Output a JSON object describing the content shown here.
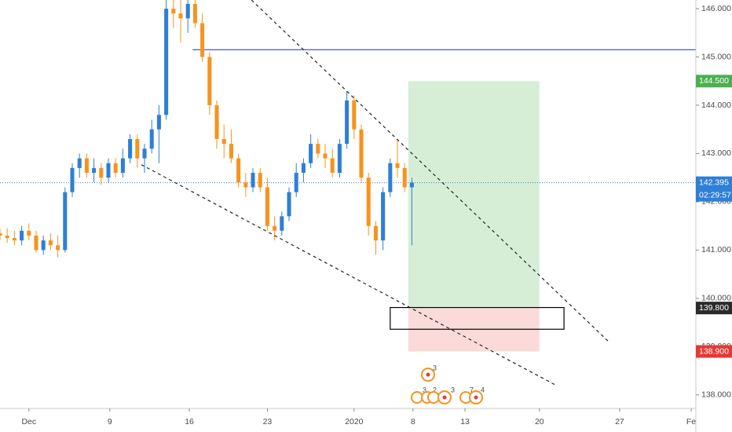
{
  "chart_data": {
    "type": "candlestick",
    "x": [
      0,
      2,
      4,
      6,
      8,
      10,
      12,
      14,
      16,
      18,
      20,
      22,
      24,
      26,
      28,
      30,
      32,
      34,
      36,
      38,
      40,
      42,
      44,
      46,
      48,
      50,
      52,
      54,
      56,
      58,
      60,
      62,
      64,
      66,
      68,
      70,
      72,
      74,
      76,
      78,
      80,
      82,
      84,
      86,
      88,
      90,
      92,
      94,
      96,
      98,
      100,
      102,
      104,
      106,
      108,
      110,
      112,
      114
    ],
    "open": [
      141.35,
      141.3,
      141.25,
      141.2,
      141.4,
      141.3,
      141.0,
      141.2,
      141.1,
      141.0,
      142.2,
      142.7,
      142.9,
      142.6,
      142.7,
      142.5,
      142.8,
      142.6,
      142.9,
      143.3,
      142.9,
      143.1,
      143.5,
      143.8,
      146.0,
      145.9,
      145.8,
      146.1,
      145.7,
      145.0,
      144.0,
      143.3,
      143.2,
      142.9,
      142.4,
      142.3,
      142.6,
      142.3,
      141.5,
      141.4,
      141.7,
      142.2,
      142.6,
      142.8,
      143.2,
      143.0,
      142.9,
      142.6,
      143.2,
      144.1,
      143.5,
      142.5,
      141.5,
      141.2,
      142.2,
      142.8,
      142.7,
      142.3
    ],
    "high": [
      141.45,
      141.45,
      141.4,
      141.5,
      141.55,
      141.4,
      141.3,
      141.35,
      141.3,
      142.3,
      142.8,
      143.0,
      143.0,
      142.9,
      142.8,
      142.9,
      142.9,
      143.1,
      143.4,
      143.4,
      143.2,
      143.7,
      144.0,
      146.2,
      146.3,
      146.2,
      146.3,
      146.2,
      145.9,
      145.1,
      144.1,
      143.6,
      143.5,
      143.0,
      142.6,
      142.7,
      142.7,
      142.5,
      141.7,
      141.8,
      142.3,
      142.8,
      142.9,
      143.4,
      143.3,
      143.2,
      143.1,
      143.3,
      144.3,
      144.2,
      143.6,
      142.6,
      141.6,
      142.3,
      142.9,
      143.3,
      142.8,
      142.5
    ],
    "low": [
      141.2,
      141.15,
      141.1,
      141.1,
      141.2,
      140.95,
      140.9,
      141.0,
      140.85,
      140.95,
      142.1,
      142.5,
      142.5,
      142.4,
      142.35,
      142.4,
      142.5,
      142.5,
      142.8,
      142.7,
      142.6,
      143.0,
      142.8,
      143.7,
      145.6,
      145.3,
      145.5,
      145.6,
      144.9,
      143.8,
      143.1,
      142.9,
      142.8,
      142.3,
      142.1,
      142.2,
      142.2,
      141.4,
      141.2,
      141.3,
      141.6,
      142.1,
      142.4,
      142.7,
      142.9,
      142.7,
      142.5,
      142.5,
      143.1,
      143.3,
      142.4,
      141.3,
      140.9,
      141.0,
      142.1,
      142.5,
      142.2,
      141.1
    ],
    "close": [
      141.3,
      141.25,
      141.2,
      141.4,
      141.3,
      141.0,
      141.2,
      141.1,
      141.0,
      142.2,
      142.7,
      142.9,
      142.6,
      142.7,
      142.5,
      142.8,
      142.6,
      142.9,
      143.3,
      142.9,
      143.1,
      143.5,
      143.8,
      146.0,
      145.9,
      145.8,
      146.1,
      145.7,
      145.0,
      144.0,
      143.3,
      143.2,
      142.9,
      142.4,
      142.3,
      142.6,
      142.3,
      141.5,
      141.4,
      141.7,
      142.2,
      142.6,
      142.8,
      143.2,
      143.0,
      142.9,
      142.6,
      143.2,
      144.1,
      143.5,
      142.5,
      141.5,
      141.2,
      142.2,
      142.8,
      142.7,
      142.3,
      142.395
    ],
    "up_color": "#2e7fd6",
    "down_color": "#f7931e",
    "xlim": [
      0,
      192.6
    ],
    "xticks": [
      {
        "value": 8,
        "label": "Dec"
      },
      {
        "value": 30.4,
        "label": "9"
      },
      {
        "value": 52.4,
        "label": "16"
      },
      {
        "value": 74,
        "label": "23"
      },
      {
        "value": 98,
        "label": "2020"
      },
      {
        "value": 114.3,
        "label": "8"
      },
      {
        "value": 128.7,
        "label": "13"
      },
      {
        "value": 149.3,
        "label": "20"
      },
      {
        "value": 171.5,
        "label": "27"
      },
      {
        "value": 191.3,
        "label": "Fe"
      }
    ],
    "ylim": [
      137.72,
      146.18
    ],
    "yticks": [
      {
        "value": 138,
        "label": "138.000"
      },
      {
        "value": 139,
        "label": "139.000"
      },
      {
        "value": 140,
        "label": "140.000"
      },
      {
        "value": 141,
        "label": "141.000"
      },
      {
        "value": 142,
        "label": "142.000"
      },
      {
        "value": 143,
        "label": "143.000"
      },
      {
        "value": 144,
        "label": "144.000"
      },
      {
        "value": 145,
        "label": "145.000"
      },
      {
        "value": 146,
        "label": "146.000"
      }
    ],
    "last_price": {
      "value": 142.395,
      "label": "142.395",
      "countdown": "02:29:57",
      "color": "#2e7fd6"
    },
    "horizontal_line": {
      "value": 145.15,
      "start": 53.3,
      "color": "#1a2fb5"
    },
    "trendlines": [
      {
        "x": [
          69.6,
          168.5
        ],
        "y": [
          146.18,
          139.1
        ]
      },
      {
        "x": [
          39.1,
          153.9
        ],
        "y": [
          142.77,
          138.2
        ]
      }
    ],
    "position": {
      "x": [
        113,
        149.3
      ],
      "target": {
        "value": 144.5,
        "label": "144.500"
      },
      "entry": {
        "value": 139.8,
        "label": "139.800"
      },
      "stop": {
        "value": 138.9,
        "label": "138.900"
      }
    },
    "zone": {
      "x": [
        108,
        156.1
      ],
      "y": [
        139.81,
        139.36
      ]
    },
    "events": [
      "3",
      "3",
      "2",
      "3",
      "7",
      "4"
    ]
  }
}
